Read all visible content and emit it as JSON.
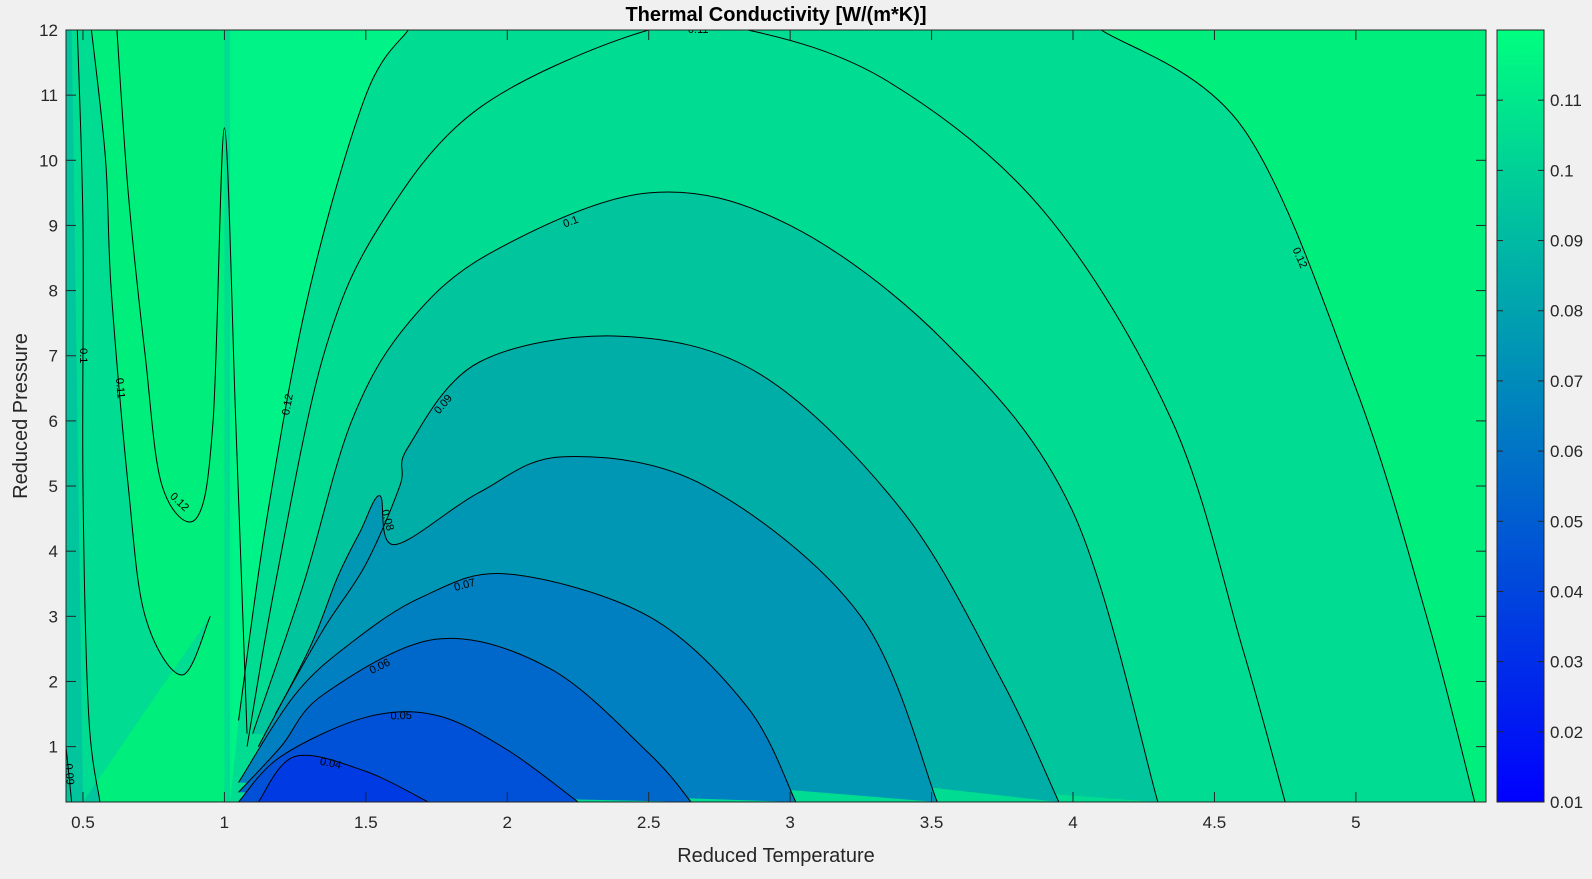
{
  "chart_data": {
    "type": "contour",
    "title": "Thermal Conductivity [W/(m*K)]",
    "xlabel": "Reduced Temperature",
    "ylabel": "Reduced Pressure",
    "xlim": [
      0.44,
      5.46
    ],
    "ylim": [
      0.15,
      12
    ],
    "x_ticks": [
      "0.5",
      "1",
      "1.5",
      "2",
      "2.5",
      "3",
      "3.5",
      "4",
      "4.5",
      "5"
    ],
    "y_ticks": [
      "1",
      "2",
      "3",
      "4",
      "5",
      "6",
      "7",
      "8",
      "9",
      "10",
      "11",
      "12"
    ],
    "colorbar": {
      "range": [
        0.01,
        0.12
      ],
      "ticks": [
        "0.01",
        "0.02",
        "0.03",
        "0.04",
        "0.05",
        "0.06",
        "0.07",
        "0.08",
        "0.09",
        "0.1",
        "0.11"
      ],
      "colormap": "winter",
      "color_low": "#0000ff",
      "color_high": "#00ff80"
    },
    "contour_levels": [
      {
        "level": 0.04,
        "label": "0.04",
        "points": [
          [
            1.12,
            0.15
          ],
          [
            1.25,
            0.85
          ],
          [
            1.5,
            0.62
          ],
          [
            1.72,
            0.15
          ]
        ]
      },
      {
        "level": 0.05,
        "label": "0.05",
        "points": [
          [
            1.05,
            0.15
          ],
          [
            1.2,
            0.85
          ],
          [
            1.5,
            1.45
          ],
          [
            1.75,
            1.48
          ],
          [
            2.0,
            0.95
          ],
          [
            2.25,
            0.15
          ]
        ]
      },
      {
        "level": 0.06,
        "label": "0.06",
        "points": [
          [
            1.05,
            0.3
          ],
          [
            1.2,
            1.0
          ],
          [
            1.35,
            1.8
          ],
          [
            1.75,
            2.65
          ],
          [
            2.15,
            2.2
          ],
          [
            2.5,
            0.9
          ],
          [
            2.65,
            0.15
          ]
        ]
      },
      {
        "level": 0.07,
        "label": "0.07",
        "points": [
          [
            1.05,
            0.45
          ],
          [
            1.25,
            1.8
          ],
          [
            1.45,
            2.6
          ],
          [
            1.7,
            3.3
          ],
          [
            2.0,
            3.65
          ],
          [
            2.5,
            3.0
          ],
          [
            2.85,
            1.6
          ],
          [
            3.02,
            0.15
          ]
        ]
      },
      {
        "level": 0.08,
        "label": "0.08",
        "points": [
          [
            1.12,
            1.0
          ],
          [
            1.3,
            2.5
          ],
          [
            1.4,
            3.6
          ],
          [
            1.48,
            4.3
          ],
          [
            1.55,
            4.85
          ],
          [
            1.6,
            4.1
          ],
          [
            1.9,
            4.9
          ],
          [
            2.2,
            5.45
          ],
          [
            2.7,
            5.0
          ],
          [
            3.25,
            3.0
          ],
          [
            3.52,
            0.15
          ]
        ]
      },
      {
        "level": 0.09,
        "label": "0.09",
        "points": [
          [
            1.18,
            1.5
          ],
          [
            1.35,
            2.8
          ],
          [
            1.5,
            3.8
          ],
          [
            1.62,
            5.0
          ],
          [
            1.65,
            5.6
          ],
          [
            1.9,
            6.9
          ],
          [
            2.4,
            7.3
          ],
          [
            2.9,
            6.7
          ],
          [
            3.4,
            4.6
          ],
          [
            3.75,
            2.0
          ],
          [
            3.95,
            0.15
          ]
        ]
      },
      {
        "level": 0.1,
        "label": "0.1",
        "points": [
          [
            1.1,
            1.2
          ],
          [
            1.28,
            3.5
          ],
          [
            1.45,
            6.0
          ],
          [
            1.65,
            7.5
          ],
          [
            1.95,
            8.6
          ],
          [
            2.5,
            9.5
          ],
          [
            3.0,
            9.0
          ],
          [
            3.55,
            7.2
          ],
          [
            4.0,
            4.6
          ],
          [
            4.3,
            0.15
          ]
        ]
      },
      {
        "level": 0.11,
        "label": "0.11",
        "points": [
          [
            1.08,
            1.0
          ],
          [
            1.18,
            3.5
          ],
          [
            1.35,
            7.0
          ],
          [
            1.55,
            9.0
          ],
          [
            1.9,
            10.8
          ],
          [
            2.5,
            12.0
          ],
          [
            2.85,
            12.0
          ],
          [
            3.35,
            11.2
          ],
          [
            3.9,
            9.2
          ],
          [
            4.35,
            6.0
          ],
          [
            4.6,
            2.5
          ],
          [
            4.75,
            0.15
          ]
        ]
      },
      {
        "level": 0.12,
        "label": "0.12",
        "points": [
          [
            1.05,
            1.4
          ],
          [
            1.15,
            4.5
          ],
          [
            1.3,
            8.0
          ],
          [
            1.5,
            11.0
          ],
          [
            1.65,
            12.0
          ]
        ]
      },
      {
        "level": 0.12,
        "label": "0.12",
        "points": [
          [
            4.1,
            12.0
          ],
          [
            4.6,
            10.5
          ],
          [
            5.0,
            6.5
          ],
          [
            5.25,
            3.0
          ],
          [
            5.42,
            0.15
          ]
        ]
      },
      {
        "level": 0.11,
        "label": "0.11",
        "points": [
          [
            0.53,
            12.0
          ],
          [
            0.58,
            10.0
          ],
          [
            0.6,
            8.0
          ],
          [
            0.66,
            5.0
          ],
          [
            0.72,
            3.0
          ],
          [
            0.85,
            2.1
          ],
          [
            0.95,
            3.0
          ]
        ]
      },
      {
        "level": 0.12,
        "label": "0.12",
        "points": [
          [
            0.62,
            12.0
          ],
          [
            0.66,
            9.5
          ],
          [
            0.72,
            7.0
          ],
          [
            0.78,
            5.0
          ],
          [
            0.9,
            4.5
          ],
          [
            0.96,
            6.0
          ],
          [
            1.0,
            10.5
          ],
          [
            1.04,
            6.0
          ],
          [
            1.08,
            1.2
          ]
        ]
      },
      {
        "level": 0.1,
        "label": "0.1",
        "points": [
          [
            0.48,
            12.0
          ],
          [
            0.5,
            9.0
          ],
          [
            0.5,
            5.0
          ],
          [
            0.52,
            1.5
          ],
          [
            0.56,
            0.15
          ]
        ]
      },
      {
        "level": 0.09,
        "label": "0.09",
        "points": [
          [
            0.44,
            1.0
          ],
          [
            0.46,
            0.15
          ]
        ]
      }
    ],
    "contour_label_positions": [
      [
        1.45,
        0.35
      ],
      [
        2.0,
        0.3
      ],
      [
        1.4,
        1.0
      ],
      [
        1.75,
        1.85
      ],
      [
        2.0,
        2.4
      ],
      [
        1.85,
        3.9
      ],
      [
        2.1,
        4.9
      ],
      [
        1.9,
        5.95
      ],
      [
        2.5,
        7.0
      ],
      [
        2.45,
        8.7
      ],
      [
        2.6,
        9.3
      ],
      [
        3.4,
        9.5
      ],
      [
        2.0,
        11.0
      ],
      [
        2.7,
        11.9
      ],
      [
        3.2,
        11.7
      ],
      [
        1.65,
        10.0
      ]
    ]
  }
}
